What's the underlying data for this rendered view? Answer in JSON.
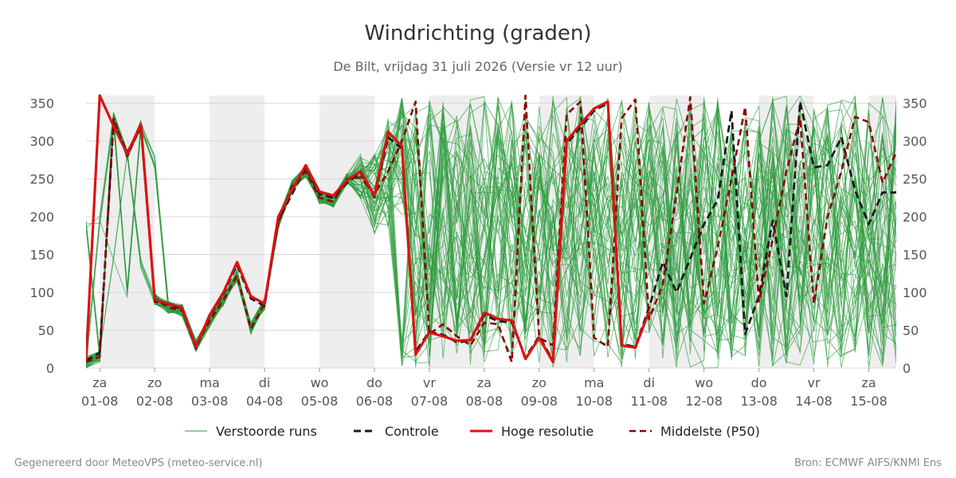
{
  "chart_data": {
    "type": "line",
    "title": "Windrichting (graden)",
    "subtitle": "De Bilt, vrijdag 31 juli 2026 (Versie vr 12 uur)",
    "ylim": [
      0,
      360
    ],
    "yticks": [
      0,
      50,
      100,
      150,
      200,
      250,
      300,
      350
    ],
    "xlim": [
      -0.25,
      14.5
    ],
    "x_ticks": [
      {
        "x": 0,
        "day": "za",
        "date": "01-08"
      },
      {
        "x": 1,
        "day": "zo",
        "date": "02-08"
      },
      {
        "x": 2,
        "day": "ma",
        "date": "03-08"
      },
      {
        "x": 3,
        "day": "di",
        "date": "04-08"
      },
      {
        "x": 4,
        "day": "wo",
        "date": "05-08"
      },
      {
        "x": 5,
        "day": "do",
        "date": "06-08"
      },
      {
        "x": 6,
        "day": "vr",
        "date": "07-08"
      },
      {
        "x": 7,
        "day": "za",
        "date": "08-08"
      },
      {
        "x": 8,
        "day": "zo",
        "date": "09-08"
      },
      {
        "x": 9,
        "day": "ma",
        "date": "10-08"
      },
      {
        "x": 10,
        "day": "di",
        "date": "11-08"
      },
      {
        "x": 11,
        "day": "wo",
        "date": "12-08"
      },
      {
        "x": 12,
        "day": "do",
        "date": "13-08"
      },
      {
        "x": 13,
        "day": "vr",
        "date": "14-08"
      },
      {
        "x": 14,
        "day": "za",
        "date": "15-08"
      }
    ],
    "shaded_bands": [
      [
        0,
        1
      ],
      [
        2,
        3
      ],
      [
        4,
        5
      ],
      [
        6,
        7
      ],
      [
        8,
        9
      ],
      [
        10,
        11
      ],
      [
        12,
        13
      ],
      [
        14,
        14.5
      ]
    ],
    "legend": [
      {
        "key": "members",
        "label": "Verstoorde runs"
      },
      {
        "key": "control",
        "label": "Controle"
      },
      {
        "key": "hires",
        "label": "Hoge resolutie"
      },
      {
        "key": "median",
        "label": "Middelste (P50)"
      }
    ],
    "colors": {
      "members": "#2e9b3e",
      "control": "#1a1a1a",
      "hires": "#dd1111",
      "median": "#8b0000",
      "shade": "#eeeeee",
      "grid": "#d8d8d8"
    },
    "series": [
      {
        "key": "hires",
        "x": [
          -0.25,
          -0.0,
          0.25,
          0.5,
          0.75,
          1.0,
          1.25,
          1.5,
          1.75,
          2.0,
          2.25,
          2.5,
          2.75,
          3.0,
          3.25,
          3.5,
          3.75,
          4.0,
          4.25,
          4.5,
          4.75,
          5.0,
          5.25,
          5.5,
          5.75,
          6.0,
          6.25,
          6.5,
          6.75,
          7.0,
          7.25,
          7.5,
          7.75,
          8.0,
          8.25,
          8.5,
          8.75,
          9.0,
          9.25,
          9.5,
          9.75,
          10.0
        ],
        "y": [
          10,
          360,
          320,
          283,
          322,
          90,
          85,
          80,
          28,
          70,
          100,
          140,
          95,
          85,
          200,
          235,
          268,
          233,
          228,
          248,
          260,
          228,
          312,
          293,
          18,
          47,
          42,
          36,
          37,
          73,
          65,
          63,
          12,
          40,
          8,
          300,
          322,
          343,
          352,
          30,
          27,
          75
        ]
      },
      {
        "key": "control",
        "x": [
          -0.25,
          -0.0,
          0.25,
          0.5,
          0.75,
          1.0,
          1.25,
          1.5,
          1.75,
          2.0,
          2.25,
          2.5,
          2.75,
          3.0,
          3.25,
          3.5,
          3.75,
          4.0,
          4.25,
          4.5,
          4.75,
          5.0,
          5.25,
          5.5,
          5.75,
          6.0,
          6.25,
          6.5,
          6.75,
          7.0,
          7.25,
          7.5,
          7.75,
          8.0,
          8.25,
          8.5,
          8.75,
          9.0,
          9.25,
          9.5,
          9.75,
          10.0,
          10.25,
          10.5,
          10.75,
          11.0,
          11.25,
          11.5,
          11.75,
          12.0,
          12.25,
          12.5,
          12.75,
          13.0,
          13.25,
          13.5,
          13.75,
          14.0,
          14.25,
          14.5
        ],
        "y": [
          10,
          20,
          325,
          285,
          318,
          88,
          84,
          78,
          26,
          68,
          98,
          136,
          92,
          82,
          195,
          230,
          265,
          230,
          225,
          245,
          258,
          226,
          305,
          290,
          22,
          48,
          44,
          34,
          36,
          70,
          62,
          60,
          14,
          42,
          10,
          296,
          318,
          340,
          350,
          32,
          28,
          80,
          140,
          100,
          145,
          190,
          222,
          340,
          45,
          95,
          195,
          95,
          352,
          265,
          268,
          305,
          235,
          190,
          232,
          232
        ]
      },
      {
        "key": "median",
        "x": [
          -0.25,
          -0.0,
          0.25,
          0.5,
          0.75,
          1.0,
          1.25,
          1.5,
          1.75,
          2.0,
          2.25,
          2.5,
          2.75,
          3.0,
          3.25,
          3.5,
          3.75,
          4.0,
          4.25,
          4.5,
          4.75,
          5.0,
          5.25,
          5.5,
          5.75,
          6.0,
          6.25,
          6.5,
          6.75,
          7.0,
          7.25,
          7.5,
          7.75,
          8.0,
          8.25,
          8.5,
          8.75,
          9.0,
          9.25,
          9.5,
          9.75,
          10.0,
          10.25,
          10.5,
          10.75,
          11.0,
          11.25,
          11.5,
          11.75,
          12.0,
          12.25,
          12.5,
          12.75,
          13.0,
          13.25,
          13.5,
          13.75,
          14.0,
          14.25,
          14.5
        ],
        "y": [
          8,
          15,
          330,
          280,
          320,
          92,
          80,
          76,
          30,
          62,
          90,
          122,
          52,
          85,
          192,
          240,
          260,
          225,
          220,
          250,
          252,
          230,
          260,
          300,
          352,
          45,
          58,
          42,
          30,
          60,
          58,
          8,
          360,
          40,
          30,
          335,
          352,
          40,
          28,
          330,
          355,
          65,
          110,
          230,
          358,
          85,
          160,
          250,
          345,
          88,
          170,
          260,
          330,
          85,
          200,
          260,
          332,
          325,
          245,
          285
        ]
      }
    ]
  },
  "footer": {
    "left": "Gegenereerd door MeteoVPS (meteo-service.nl)",
    "right": "Bron: ECMWF AIFS/KNMI Ens"
  }
}
